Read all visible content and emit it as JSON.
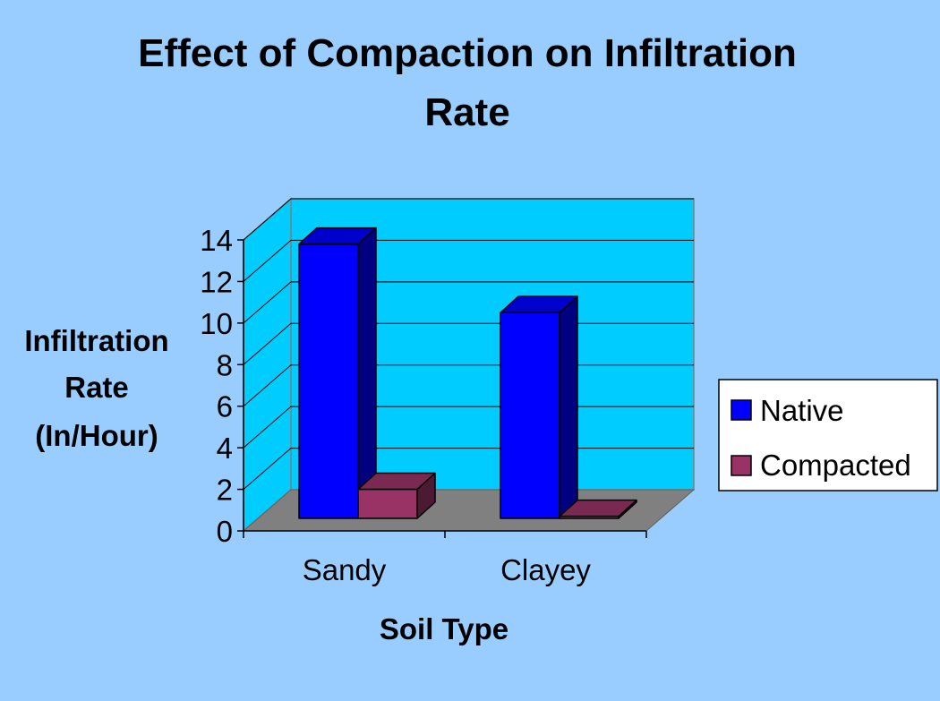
{
  "chart_data": {
    "type": "bar",
    "title_lines": [
      "Effect of Compaction on Infiltration",
      "Rate"
    ],
    "ylabel_lines": [
      "Infiltration",
      "Rate",
      "(In/Hour)"
    ],
    "xlabel": "Soil Type",
    "categories": [
      "Sandy",
      "Clayey"
    ],
    "series": [
      {
        "name": "Native",
        "values": [
          13.2,
          9.9
        ]
      },
      {
        "name": "Compacted",
        "values": [
          1.4,
          0.1
        ]
      }
    ],
    "ylim": [
      0,
      14
    ],
    "yticks": [
      "0",
      "2",
      "4",
      "6",
      "8",
      "10",
      "12",
      "14"
    ],
    "grid": true,
    "legend": "right",
    "colors": {
      "background": "#99ccff",
      "wall": "#00ccff",
      "floor": "#808080",
      "native_front": "#0000ff",
      "native_top": "#0000cc",
      "native_side": "#000080",
      "compacted_front": "#993366",
      "compacted_top": "#7a2952",
      "compacted_side": "#4d1a33"
    }
  }
}
